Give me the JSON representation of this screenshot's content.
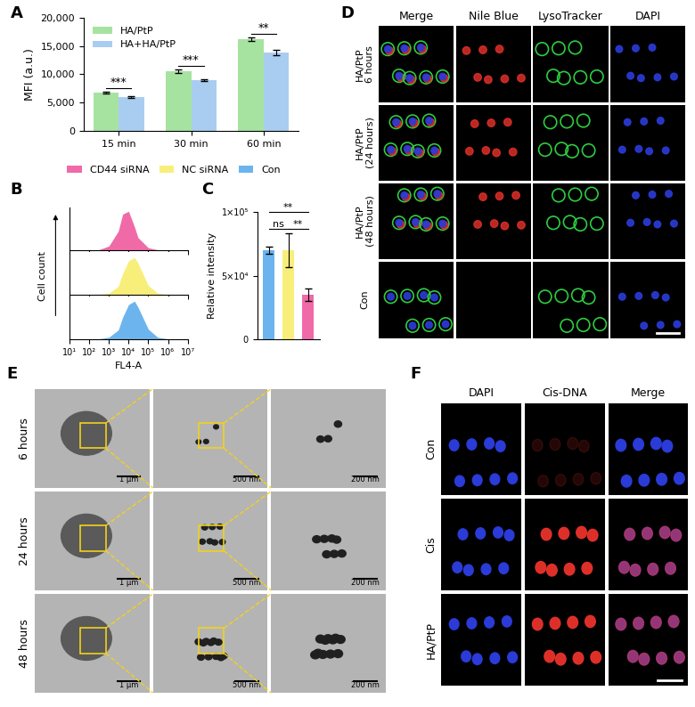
{
  "chart_data": [
    {
      "panel": "A",
      "type": "bar",
      "y_label": "MFI (a.u.)",
      "categories": [
        "15 min",
        "30 min",
        "60 min"
      ],
      "series": [
        {
          "name": "HA/PtP",
          "color": "#a6e3a1",
          "values": [
            6800,
            10500,
            16200
          ],
          "errors": [
            150,
            300,
            350
          ]
        },
        {
          "name": "HA+HA/PtP",
          "color": "#a9cdf0",
          "values": [
            5950,
            9000,
            13800
          ],
          "errors": [
            150,
            150,
            500
          ]
        }
      ],
      "ylim": [
        0,
        20000
      ],
      "yticks": [
        0,
        {
          "value": 5000,
          "label": "5,000"
        },
        {
          "value": 10000,
          "label": "10,000"
        },
        {
          "value": 15000,
          "label": "15,000"
        },
        {
          "value": 20000,
          "label": "20,000"
        }
      ],
      "legend": "upper left",
      "annotations": [
        {
          "text": "***",
          "category": 0
        },
        {
          "text": "***",
          "category": 1
        },
        {
          "text": "**",
          "category": 2
        }
      ]
    },
    {
      "panel": "B",
      "type": "area",
      "x_label": "FL4-A",
      "y_label": "Cell count",
      "x": [
        10,
        100,
        300,
        1000,
        3000,
        5000,
        10000,
        20000,
        30000,
        100000,
        300000,
        1000000,
        10000000
      ],
      "series": [
        {
          "name": "CD44 siRNA",
          "color": "#f06aa8",
          "values": [
            0,
            0,
            1,
            10,
            45,
            85,
            92,
            55,
            30,
            6,
            1,
            0,
            0
          ]
        },
        {
          "name": "NC siRNA",
          "color": "#f7ef7a",
          "values": [
            0,
            0,
            1,
            4,
            20,
            50,
            80,
            88,
            75,
            22,
            4,
            0,
            0
          ]
        },
        {
          "name": "Con",
          "color": "#6cb4ee",
          "values": [
            0,
            0,
            1,
            5,
            22,
            52,
            82,
            90,
            76,
            24,
            5,
            1,
            0
          ]
        }
      ],
      "log": "x",
      "xlim": [
        10,
        10000000
      ],
      "xticks": [
        {
          "value": 10,
          "label": "10¹"
        },
        {
          "value": 100,
          "label": "10²"
        },
        {
          "value": 1000,
          "label": "10³"
        },
        {
          "value": 10000,
          "label": "10⁴"
        },
        {
          "value": 100000,
          "label": "10⁵"
        },
        {
          "value": 1000000,
          "label": "10⁶"
        },
        {
          "value": 10000000,
          "label": "10⁷"
        }
      ],
      "ylim": [
        0,
        100
      ],
      "tick_labels": "x",
      "legend": "upper center"
    },
    {
      "panel": "C",
      "type": "bar",
      "y_label": "Relative intensity",
      "categories": [
        null,
        null,
        null
      ],
      "values": [
        70000,
        70000,
        35000
      ],
      "errors": [
        3000,
        13000,
        5000
      ],
      "colors": [
        "#6cb4ee",
        "#f7ef7a",
        "#f06aa8"
      ],
      "ylim": [
        0,
        100000
      ],
      "yticks": [
        0,
        {
          "value": 50000,
          "label": "5×10⁴"
        },
        {
          "value": 100000,
          "label": "1×10⁵"
        }
      ],
      "tick_labels": "y",
      "annotations": [
        {
          "text": "**",
          "from": 0,
          "to": 2
        },
        {
          "text": "ns",
          "from": 0,
          "to": 1
        },
        {
          "text": "**",
          "from": 1,
          "to": 2
        }
      ]
    }
  ],
  "image_panels": [
    {
      "panel": "D",
      "columns": [
        "Merge",
        "Nile Blue",
        "LysoTracker",
        "DAPI"
      ],
      "rows": [
        "HA/PtP\n6 hours",
        "HA/PtP\n(24 hours)",
        "HA/PtP\n(48 hours)",
        "Con"
      ]
    },
    {
      "panel": "E",
      "rows": [
        "6 hours",
        "24 hours",
        "48 hours"
      ],
      "scale_bars": [
        "1 μm",
        "500 nm",
        "200 nm"
      ]
    },
    {
      "panel": "F",
      "columns": [
        "DAPI",
        "Cis-DNA",
        "Merge"
      ],
      "rows": [
        "Con",
        "Cis",
        "HA/PtP"
      ]
    }
  ]
}
